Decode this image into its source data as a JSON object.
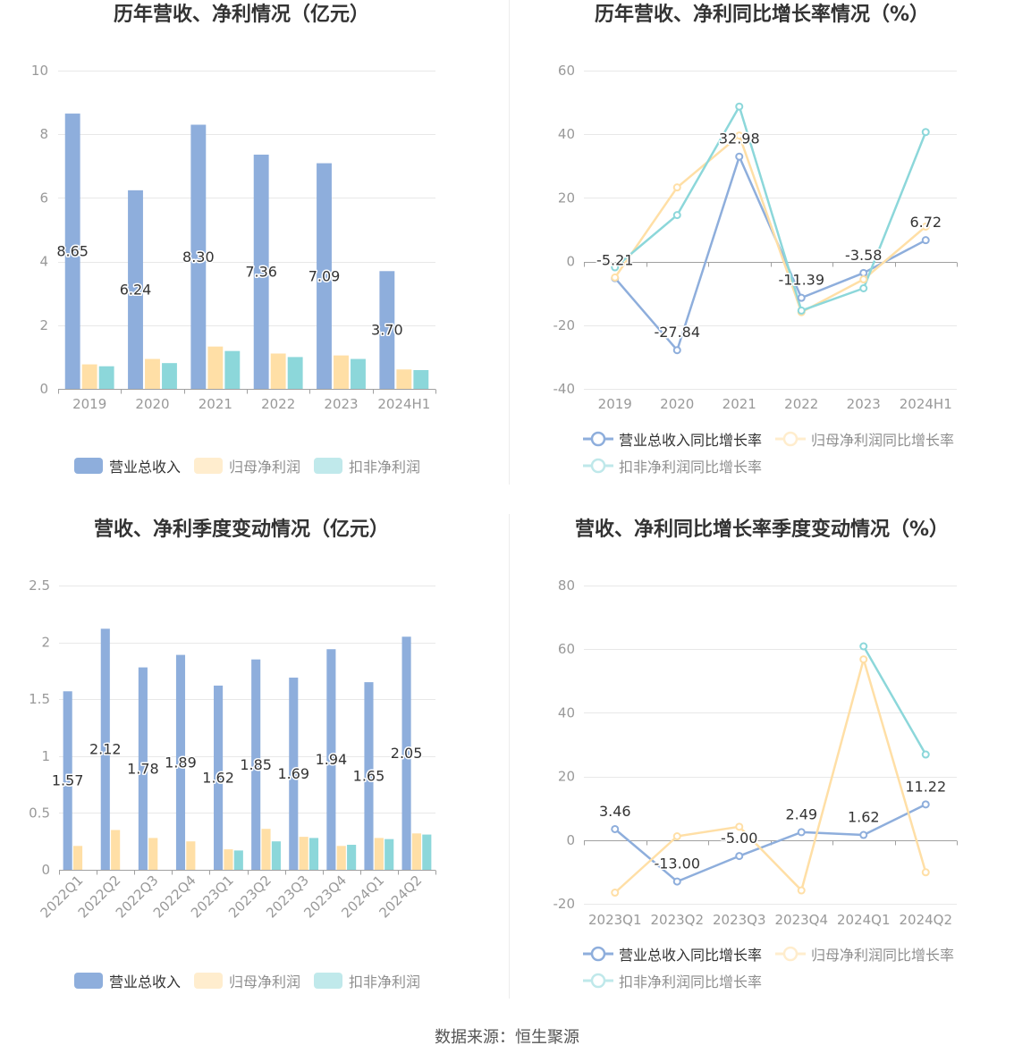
{
  "chart_data": [
    {
      "type": "bar",
      "title": "历年营收、净利情况（亿元）",
      "categories": [
        "2019",
        "2020",
        "2021",
        "2022",
        "2023",
        "2024H1"
      ],
      "ylim": [
        0,
        10
      ],
      "yticks": [
        0,
        2,
        4,
        6,
        8,
        10
      ],
      "grid": true,
      "legend": "bottom",
      "series": [
        {
          "name": "营业总收入",
          "color": "#8eaedc",
          "data_labels": true,
          "values": [
            8.65,
            6.24,
            8.3,
            7.36,
            7.09,
            3.7
          ]
        },
        {
          "name": "归母净利润",
          "color": "#ffdfa6",
          "data_labels": false,
          "values": [
            0.77,
            0.94,
            1.33,
            1.11,
            1.05,
            0.61
          ]
        },
        {
          "name": "扣非净利润",
          "color": "#8cd7da",
          "data_labels": false,
          "values": [
            0.71,
            0.81,
            1.19,
            1.0,
            0.94,
            0.59
          ]
        }
      ]
    },
    {
      "type": "line",
      "title": "历年营收、净利同比增长率情况（%）",
      "categories": [
        "2019",
        "2020",
        "2021",
        "2022",
        "2023",
        "2024H1"
      ],
      "ylim": [
        -40,
        60
      ],
      "yticks": [
        -40,
        -20,
        0,
        20,
        40,
        60
      ],
      "grid": true,
      "legend": "bottom",
      "series": [
        {
          "name": "营业总收入同比增长率",
          "color": "#8eaedc",
          "data_labels": true,
          "values": [
            -5.21,
            -27.84,
            32.98,
            -11.39,
            -3.58,
            6.72
          ]
        },
        {
          "name": "归母净利润同比增长率",
          "color": "#ffdfa6",
          "data_labels": false,
          "values": [
            -5.0,
            23.3,
            39.6,
            -15.9,
            -5.6,
            11.0
          ]
        },
        {
          "name": "扣非净利润同比增长率",
          "color": "#8cd7da",
          "data_labels": false,
          "values": [
            -1.8,
            14.6,
            48.7,
            -15.4,
            -8.4,
            40.7
          ]
        }
      ]
    },
    {
      "type": "bar",
      "title": "营收、净利季度变动情况（亿元）",
      "categories": [
        "2022Q1",
        "2022Q2",
        "2022Q3",
        "2022Q4",
        "2023Q1",
        "2023Q2",
        "2023Q3",
        "2023Q4",
        "2024Q1",
        "2024Q2"
      ],
      "ylim": [
        0,
        2.5
      ],
      "yticks": [
        0,
        0.5,
        1,
        1.5,
        2,
        2.5
      ],
      "grid": true,
      "legend": "bottom",
      "series": [
        {
          "name": "营业总收入",
          "color": "#8eaedc",
          "data_labels": true,
          "values": [
            1.57,
            2.12,
            1.78,
            1.89,
            1.62,
            1.85,
            1.69,
            1.94,
            1.65,
            2.05
          ]
        },
        {
          "name": "归母净利润",
          "color": "#ffdfa6",
          "data_labels": false,
          "values": [
            0.21,
            0.35,
            0.28,
            0.25,
            0.18,
            0.36,
            0.29,
            0.21,
            0.28,
            0.32
          ]
        },
        {
          "name": "扣非净利润",
          "color": "#8cd7da",
          "data_labels": false,
          "values": [
            null,
            null,
            null,
            null,
            0.17,
            0.25,
            0.28,
            0.22,
            0.27,
            0.31
          ]
        }
      ]
    },
    {
      "type": "line",
      "title": "营收、净利同比增长率季度变动情况（%）",
      "categories": [
        "2023Q1",
        "2023Q2",
        "2023Q3",
        "2023Q4",
        "2024Q1",
        "2024Q2"
      ],
      "ylim": [
        -20,
        80
      ],
      "yticks": [
        -20,
        0,
        20,
        40,
        60,
        80
      ],
      "grid": true,
      "legend": "bottom",
      "series": [
        {
          "name": "营业总收入同比增长率",
          "color": "#8eaedc",
          "data_labels": true,
          "values": [
            3.46,
            -13.0,
            -5.0,
            2.49,
            1.62,
            11.22
          ]
        },
        {
          "name": "归母净利润同比增长率",
          "color": "#ffdfa6",
          "data_labels": false,
          "values": [
            -16.5,
            1.2,
            4.2,
            -15.8,
            56.8,
            -10.1
          ]
        },
        {
          "name": "扣非净利润同比增长率",
          "color": "#8cd7da",
          "data_labels": false,
          "values": [
            null,
            null,
            null,
            null,
            60.9,
            26.9
          ]
        }
      ]
    }
  ],
  "footer": {
    "source": "数据来源：恒生聚源"
  }
}
